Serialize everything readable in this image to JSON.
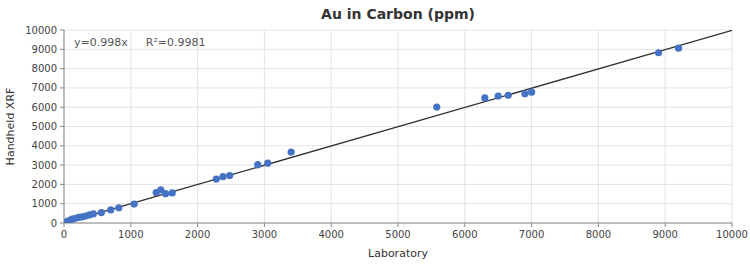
{
  "chart_data": {
    "type": "scatter",
    "title": "Au in Carbon (ppm)",
    "xlabel": "Laboratory",
    "ylabel": "Handheld XRF",
    "annotations": [
      "y=0.998x",
      "R²=0.9981"
    ],
    "xlim": [
      0,
      10000
    ],
    "ylim": [
      0,
      10000
    ],
    "xticks": [
      0,
      1000,
      2000,
      3000,
      4000,
      5000,
      6000,
      7000,
      8000,
      9000,
      10000
    ],
    "yticks": [
      0,
      1000,
      2000,
      3000,
      4000,
      5000,
      6000,
      7000,
      8000,
      9000,
      10000
    ],
    "grid": true,
    "series": [
      {
        "type": "scatter",
        "marker": "circle",
        "color": "#4472C4",
        "x": [
          50,
          80,
          120,
          170,
          220,
          270,
          320,
          380,
          440,
          560,
          700,
          820,
          1050,
          1380,
          1450,
          1520,
          1620,
          2280,
          2380,
          2480,
          2900,
          3050,
          3400,
          5580,
          6300,
          6500,
          6650,
          6900,
          7000,
          8900,
          9200
        ],
        "values": [
          80,
          130,
          200,
          240,
          290,
          320,
          360,
          420,
          480,
          540,
          680,
          790,
          980,
          1580,
          1720,
          1520,
          1560,
          2280,
          2400,
          2460,
          3020,
          3100,
          3680,
          6010,
          6480,
          6580,
          6620,
          6700,
          6780,
          8820,
          9060
        ]
      },
      {
        "type": "line",
        "line_style": "solid",
        "color": "#2F2F2F",
        "x": [
          0,
          10000
        ],
        "values": [
          0,
          9980
        ]
      }
    ]
  }
}
